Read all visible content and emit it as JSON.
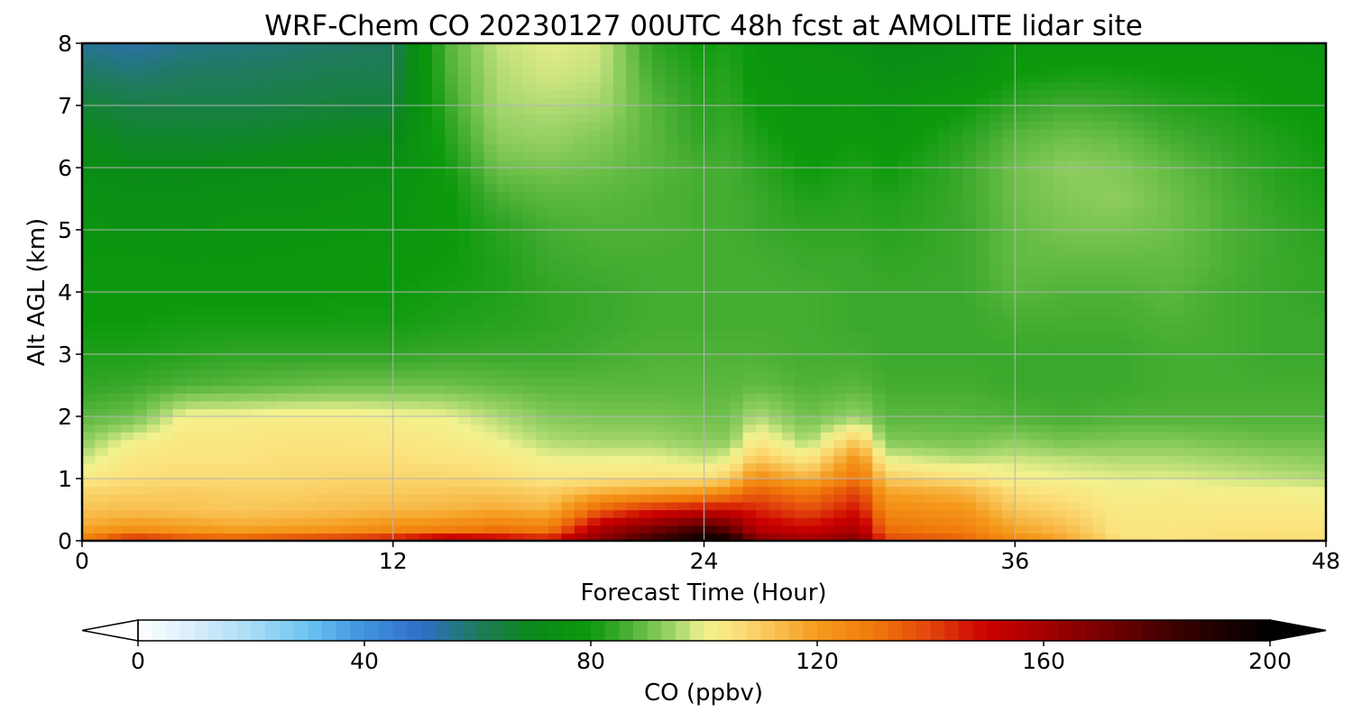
{
  "chart_data": {
    "type": "heatmap",
    "title": "WRF-Chem CO  20230127 00UTC 48h fcst at AMOLITE lidar site",
    "xlabel": "Forecast Time (Hour)",
    "ylabel": "Alt AGL (km)",
    "xlim": [
      0,
      48
    ],
    "ylim": [
      0,
      8
    ],
    "xticks": [
      0,
      12,
      24,
      36,
      48
    ],
    "yticks": [
      0,
      1,
      2,
      3,
      4,
      5,
      6,
      7,
      8
    ],
    "grid": true,
    "colorbar": {
      "label": "CO  (ppbv)",
      "min": 0,
      "max": 200,
      "ticks": [
        0,
        40,
        80,
        120,
        160,
        200
      ],
      "extend": "both",
      "orientation": "horizontal",
      "placement": "bottom"
    },
    "z_heights_km": [
      0,
      0.2,
      0.5,
      0.8,
      1.0,
      1.3,
      1.6,
      2.0,
      2.5,
      3.0,
      3.5,
      4.0,
      4.5,
      5.0,
      5.5,
      6.0,
      6.5,
      7.0,
      7.5,
      8.0
    ],
    "profiles": [
      {
        "t": 0,
        "co": [
          130,
          118,
          112,
          108,
          103,
          98,
          93,
          88,
          84,
          82,
          80,
          79,
          78,
          76,
          74,
          72,
          70,
          66,
          60,
          55
        ]
      },
      {
        "t": 2,
        "co": [
          148,
          122,
          113,
          109,
          106,
          104,
          101,
          90,
          85,
          82,
          80,
          79,
          78,
          75,
          73,
          70,
          67,
          63,
          58,
          53
        ]
      },
      {
        "t": 4,
        "co": [
          140,
          120,
          112,
          110,
          107,
          105,
          104,
          101,
          87,
          83,
          81,
          79,
          77,
          75,
          73,
          70,
          67,
          63,
          60,
          56
        ]
      },
      {
        "t": 6,
        "co": [
          138,
          118,
          111,
          109,
          107,
          105,
          104,
          101,
          88,
          84,
          81,
          79,
          77,
          76,
          74,
          71,
          67,
          63,
          60,
          57
        ]
      },
      {
        "t": 8,
        "co": [
          142,
          119,
          112,
          109,
          107,
          106,
          105,
          102,
          89,
          84,
          81,
          79,
          78,
          76,
          74,
          72,
          68,
          64,
          61,
          58
        ]
      },
      {
        "t": 10,
        "co": [
          145,
          121,
          113,
          110,
          108,
          106,
          105,
          102,
          90,
          84,
          81,
          80,
          78,
          77,
          75,
          73,
          69,
          65,
          62,
          59
        ]
      },
      {
        "t": 12,
        "co": [
          150,
          124,
          114,
          110,
          108,
          106,
          104,
          101,
          90,
          84,
          81,
          80,
          79,
          77,
          76,
          74,
          70,
          65,
          62,
          60
        ]
      },
      {
        "t": 14,
        "co": [
          160,
          126,
          115,
          111,
          108,
          105,
          103,
          100,
          90,
          85,
          82,
          81,
          80,
          79,
          79,
          80,
          82,
          84,
          86,
          87
        ]
      },
      {
        "t": 16,
        "co": [
          155,
          130,
          117,
          111,
          107,
          104,
          100,
          96,
          89,
          85,
          83,
          82,
          82,
          83,
          86,
          90,
          93,
          95,
          96,
          97
        ]
      },
      {
        "t": 18,
        "co": [
          148,
          128,
          115,
          109,
          104,
          100,
          96,
          92,
          88,
          85,
          84,
          84,
          85,
          86,
          88,
          91,
          94,
          96,
          98,
          99
        ]
      },
      {
        "t": 20,
        "co": [
          168,
          158,
          135,
          115,
          105,
          100,
          95,
          91,
          88,
          86,
          85,
          85,
          86,
          87,
          88,
          90,
          92,
          95,
          97,
          98
        ]
      },
      {
        "t": 22,
        "co": [
          185,
          170,
          145,
          118,
          106,
          100,
          95,
          91,
          88,
          87,
          86,
          86,
          86,
          87,
          87,
          88,
          88,
          88,
          86,
          84
        ]
      },
      {
        "t": 24,
        "co": [
          200,
          182,
          150,
          120,
          106,
          98,
          93,
          90,
          88,
          87,
          86,
          86,
          86,
          86,
          86,
          86,
          84,
          83,
          82,
          80
        ]
      },
      {
        "t": 25,
        "co": [
          195,
          175,
          150,
          125,
          110,
          100,
          93,
          90,
          88,
          87,
          86,
          86,
          86,
          86,
          86,
          86,
          85,
          84,
          83,
          82
        ]
      },
      {
        "t": 26,
        "co": [
          170,
          155,
          145,
          135,
          125,
          112,
          104,
          96,
          89,
          87,
          86,
          86,
          86,
          85,
          85,
          84,
          82,
          80,
          78,
          77
        ]
      },
      {
        "t": 28,
        "co": [
          160,
          150,
          138,
          128,
          115,
          104,
          95,
          90,
          87,
          86,
          86,
          86,
          85,
          84,
          82,
          80,
          78,
          77,
          76,
          75
        ]
      },
      {
        "t": 30,
        "co": [
          170,
          158,
          148,
          140,
          132,
          124,
          112,
          94,
          88,
          86,
          85,
          85,
          85,
          84,
          83,
          82,
          80,
          78,
          76,
          74
        ]
      },
      {
        "t": 31,
        "co": [
          140,
          132,
          125,
          118,
          110,
          100,
          92,
          88,
          86,
          85,
          85,
          85,
          84,
          83,
          82,
          80,
          78,
          76,
          73,
          70
        ]
      },
      {
        "t": 34,
        "co": [
          135,
          128,
          122,
          115,
          106,
          97,
          91,
          88,
          86,
          85,
          85,
          85,
          85,
          85,
          85,
          85,
          83,
          80,
          75,
          72
        ]
      },
      {
        "t": 36,
        "co": [
          125,
          118,
          111,
          106,
          101,
          98,
          93,
          87,
          85,
          85,
          86,
          88,
          89,
          89,
          90,
          90,
          88,
          84,
          80,
          77
        ]
      },
      {
        "t": 38,
        "co": [
          118,
          113,
          108,
          104,
          100,
          97,
          91,
          86,
          85,
          85,
          86,
          87,
          89,
          91,
          92,
          93,
          90,
          86,
          81,
          78
        ]
      },
      {
        "t": 40,
        "co": [
          106,
          104,
          103,
          101,
          99,
          96,
          92,
          87,
          85,
          85,
          86,
          87,
          89,
          91,
          93,
          92,
          89,
          85,
          81,
          78
        ]
      },
      {
        "t": 42,
        "co": [
          105,
          104,
          103,
          102,
          99,
          96,
          92,
          87,
          86,
          86,
          87,
          88,
          89,
          90,
          90,
          89,
          86,
          83,
          80,
          78
        ]
      },
      {
        "t": 44,
        "co": [
          106,
          105,
          103,
          101,
          98,
          95,
          91,
          87,
          86,
          86,
          86,
          86,
          87,
          87,
          87,
          86,
          84,
          82,
          80,
          78
        ]
      },
      {
        "t": 46,
        "co": [
          107,
          105,
          103,
          101,
          97,
          94,
          90,
          87,
          86,
          85,
          85,
          85,
          85,
          85,
          84,
          83,
          82,
          80,
          79,
          77
        ]
      },
      {
        "t": 48,
        "co": [
          106,
          105,
          103,
          100,
          96,
          93,
          90,
          87,
          86,
          85,
          85,
          84,
          84,
          83,
          82,
          81,
          80,
          79,
          78,
          76
        ]
      }
    ],
    "colormap": [
      [
        0,
        "#ffffff"
      ],
      [
        10,
        "#d8eefb"
      ],
      [
        20,
        "#a9dcf6"
      ],
      [
        30,
        "#6cc3f2"
      ],
      [
        40,
        "#3f92dd"
      ],
      [
        50,
        "#2f6ec9"
      ],
      [
        60,
        "#1f7a5c"
      ],
      [
        70,
        "#0a8a17"
      ],
      [
        80,
        "#0c9a0c"
      ],
      [
        85,
        "#3aa82c"
      ],
      [
        90,
        "#6ec04a"
      ],
      [
        95,
        "#a4d66e"
      ],
      [
        100,
        "#f2f28e"
      ],
      [
        105,
        "#fbe37e"
      ],
      [
        110,
        "#f9cc60"
      ],
      [
        115,
        "#f7b440"
      ],
      [
        120,
        "#f59b1d"
      ],
      [
        130,
        "#f07a0a"
      ],
      [
        140,
        "#e2440c"
      ],
      [
        150,
        "#cc0000"
      ],
      [
        160,
        "#a40000"
      ],
      [
        170,
        "#7a0000"
      ],
      [
        180,
        "#4a0000"
      ],
      [
        190,
        "#220000"
      ],
      [
        200,
        "#000000"
      ]
    ]
  }
}
